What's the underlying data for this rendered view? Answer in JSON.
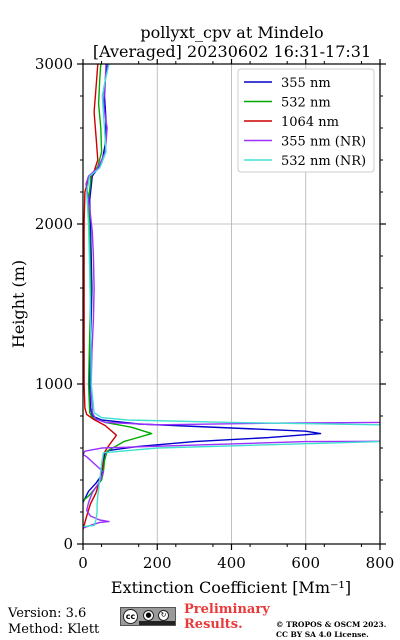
{
  "chart_data": {
    "type": "line",
    "title": "pollyxt_cpv at Mindelo",
    "subtitle": "[Averaged] 20230602 16:31-17:31",
    "xlabel": "Extinction Coefficient [Mm⁻¹]",
    "ylabel": "Height (m)",
    "xlim": [
      0,
      800
    ],
    "ylim": [
      0,
      3000
    ],
    "x_ticks": [
      "0",
      "200",
      "400",
      "600",
      "800"
    ],
    "y_ticks": [
      "0",
      "1000",
      "2000",
      "3000"
    ],
    "grid": true,
    "legend_position": "top-right",
    "series": [
      {
        "name": "355 nm",
        "color": "#0000cc",
        "points": [
          [
            0,
            260
          ],
          [
            15,
            330
          ],
          [
            35,
            380
          ],
          [
            50,
            430
          ],
          [
            55,
            480
          ],
          [
            58,
            560
          ],
          [
            70,
            585
          ],
          [
            150,
            610
          ],
          [
            300,
            640
          ],
          [
            500,
            665
          ],
          [
            640,
            690
          ],
          [
            600,
            705
          ],
          [
            400,
            725
          ],
          [
            150,
            750
          ],
          [
            50,
            775
          ],
          [
            25,
            800
          ],
          [
            20,
            850
          ],
          [
            18,
            1000
          ],
          [
            20,
            1200
          ],
          [
            22,
            1400
          ],
          [
            24,
            1600
          ],
          [
            22,
            1800
          ],
          [
            20,
            2000
          ],
          [
            18,
            2150
          ],
          [
            25,
            2300
          ],
          [
            50,
            2380
          ],
          [
            60,
            2500
          ],
          [
            62,
            2650
          ],
          [
            58,
            2800
          ],
          [
            60,
            2900
          ],
          [
            65,
            3000
          ]
        ]
      },
      {
        "name": "532 nm",
        "color": "#00aa00",
        "points": [
          [
            0,
            270
          ],
          [
            15,
            300
          ],
          [
            30,
            340
          ],
          [
            50,
            400
          ],
          [
            55,
            450
          ],
          [
            58,
            520
          ],
          [
            65,
            580
          ],
          [
            110,
            640
          ],
          [
            185,
            690
          ],
          [
            130,
            730
          ],
          [
            60,
            760
          ],
          [
            25,
            790
          ],
          [
            18,
            820
          ],
          [
            15,
            1000
          ],
          [
            17,
            1200
          ],
          [
            19,
            1400
          ],
          [
            21,
            1600
          ],
          [
            19,
            1800
          ],
          [
            17,
            2000
          ],
          [
            15,
            2150
          ],
          [
            22,
            2300
          ],
          [
            40,
            2360
          ],
          [
            50,
            2450
          ],
          [
            48,
            2600
          ],
          [
            42,
            2750
          ],
          [
            45,
            2900
          ],
          [
            48,
            3000
          ]
        ]
      },
      {
        "name": "1064 nm",
        "color": "#cc0000",
        "points": [
          [
            0,
            90
          ],
          [
            8,
            160
          ],
          [
            20,
            250
          ],
          [
            35,
            320
          ],
          [
            45,
            400
          ],
          [
            52,
            480
          ],
          [
            55,
            560
          ],
          [
            65,
            600
          ],
          [
            90,
            680
          ],
          [
            60,
            740
          ],
          [
            28,
            780
          ],
          [
            10,
            810
          ],
          [
            5,
            850
          ],
          [
            3,
            1000
          ],
          [
            3,
            1500
          ],
          [
            3,
            2000
          ],
          [
            5,
            2200
          ],
          [
            15,
            2280
          ],
          [
            30,
            2330
          ],
          [
            40,
            2400
          ],
          [
            35,
            2550
          ],
          [
            30,
            2700
          ],
          [
            35,
            2850
          ],
          [
            40,
            3000
          ]
        ]
      },
      {
        "name": "355 nm (NR)",
        "color": "#9b30ff",
        "points": [
          [
            0,
            100
          ],
          [
            25,
            120
          ],
          [
            45,
            135
          ],
          [
            70,
            140
          ],
          [
            45,
            150
          ],
          [
            20,
            175
          ],
          [
            10,
            210
          ],
          [
            15,
            260
          ],
          [
            25,
            320
          ],
          [
            45,
            390
          ],
          [
            55,
            450
          ],
          [
            10,
            545
          ],
          [
            0,
            560
          ],
          [
            5,
            580
          ],
          [
            50,
            600
          ],
          [
            600,
            640
          ],
          [
            800,
            642
          ]
        ]
      },
      {
        "name": "532 nm (NR)",
        "color": "#40e0d0",
        "points": [
          [
            0,
            110
          ],
          [
            30,
            115
          ],
          [
            35,
            150
          ],
          [
            38,
            200
          ],
          [
            38,
            250
          ],
          [
            40,
            300
          ],
          [
            45,
            400
          ],
          [
            50,
            500
          ],
          [
            55,
            570
          ],
          [
            200,
            600
          ],
          [
            800,
            640
          ]
        ]
      },
      {
        "name": "355 nm (NR) upper",
        "color": "#9b30ff",
        "points": [
          [
            800,
            760
          ],
          [
            500,
            755
          ],
          [
            200,
            745
          ],
          [
            60,
            760
          ],
          [
            35,
            780
          ],
          [
            25,
            820
          ],
          [
            22,
            1000
          ],
          [
            24,
            1200
          ],
          [
            28,
            1400
          ],
          [
            30,
            1600
          ],
          [
            28,
            1800
          ],
          [
            25,
            1950
          ],
          [
            18,
            2100
          ],
          [
            12,
            2200
          ],
          [
            8,
            2250
          ],
          [
            15,
            2300
          ],
          [
            40,
            2350
          ],
          [
            60,
            2450
          ],
          [
            65,
            2600
          ],
          [
            55,
            2750
          ],
          [
            60,
            2900
          ],
          [
            62,
            3000
          ]
        ]
      },
      {
        "name": "532 nm (NR) upper",
        "color": "#40e0d0",
        "points": [
          [
            800,
            745
          ],
          [
            400,
            760
          ],
          [
            120,
            775
          ],
          [
            50,
            790
          ],
          [
            30,
            820
          ],
          [
            22,
            1000
          ],
          [
            20,
            1500
          ],
          [
            15,
            2000
          ],
          [
            10,
            2200
          ],
          [
            18,
            2300
          ],
          [
            45,
            2350
          ],
          [
            62,
            2450
          ],
          [
            58,
            2600
          ],
          [
            52,
            2800
          ],
          [
            60,
            2900
          ],
          [
            70,
            3000
          ]
        ]
      }
    ]
  },
  "legend": [
    {
      "label": "355 nm",
      "color": "#0000cc"
    },
    {
      "label": "532 nm",
      "color": "#00aa00"
    },
    {
      "label": "1064 nm",
      "color": "#cc0000"
    },
    {
      "label": "355 nm (NR)",
      "color": "#9b30ff"
    },
    {
      "label": "532 nm (NR)",
      "color": "#40e0d0"
    }
  ],
  "footer": {
    "version": "Version: 3.6",
    "method": "Method: Klett",
    "cc_badge": "cc",
    "preliminary_line1": "Preliminary",
    "preliminary_line2": "Results.",
    "copyright_line1": "© TROPOS & OSCM 2023.",
    "copyright_line2": "CC BY SA 4.0 License."
  }
}
